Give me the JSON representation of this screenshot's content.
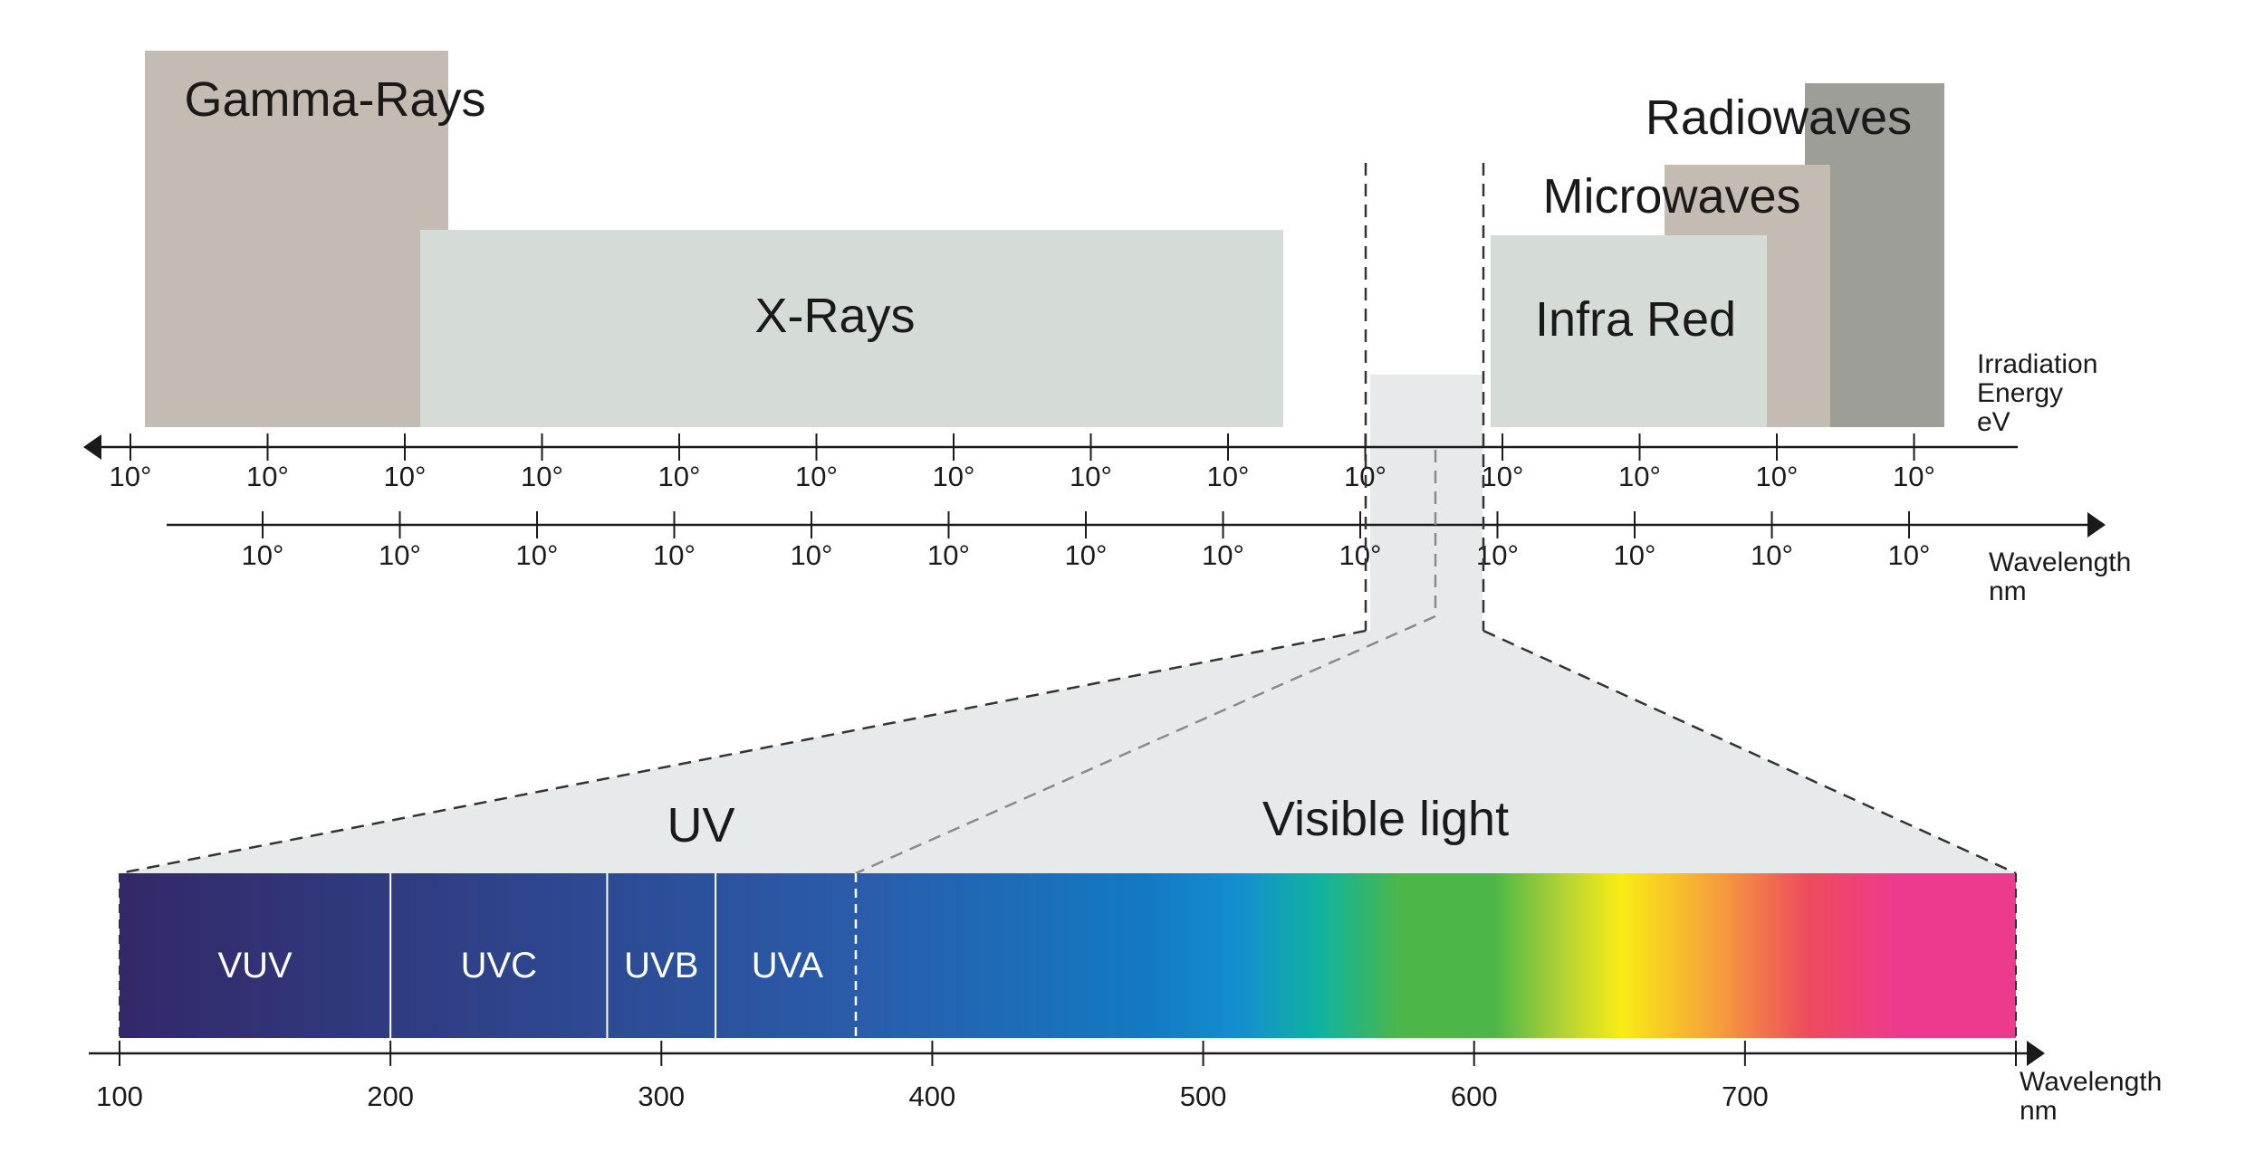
{
  "spectrum": {
    "bands": [
      {
        "id": "gamma",
        "label": "Gamma-Rays",
        "color": "#c4bcb3"
      },
      {
        "id": "xray",
        "label": "X-Rays",
        "color": "#d5dbd7"
      },
      {
        "id": "visible-window",
        "label": "",
        "color": "#e7eaea"
      },
      {
        "id": "infrared",
        "label": "Infra Red",
        "color": "#d5dbd7"
      },
      {
        "id": "microwaves",
        "label": "Microwaves",
        "color": "#c4bcb3"
      },
      {
        "id": "radiowaves",
        "label": "Radiowaves",
        "color": "#9d9e98"
      }
    ],
    "energy_axis": {
      "label_lines": [
        "Irradiation",
        "Energy",
        "eV"
      ],
      "ticks": [
        "10°",
        "10°",
        "10°",
        "10°",
        "10°",
        "10°",
        "10°",
        "10°",
        "10°",
        "10°",
        "10°",
        "10°",
        "10°",
        "10°"
      ]
    },
    "wavelength_axis": {
      "label_lines": [
        "Wavelength",
        "nm"
      ],
      "ticks": [
        "10°",
        "10°",
        "10°",
        "10°",
        "10°",
        "10°",
        "10°",
        "10°",
        "10°",
        "10°",
        "10°",
        "10°",
        "10°"
      ]
    }
  },
  "zoom": {
    "uv_label": "UV",
    "visible_label": "Visible light",
    "segments": [
      {
        "label": "VUV",
        "range_nm": [
          100,
          200
        ]
      },
      {
        "label": "UVC",
        "range_nm": [
          200,
          280
        ]
      },
      {
        "label": "UVB",
        "range_nm": [
          280,
          320
        ]
      },
      {
        "label": "UVA",
        "range_nm": [
          320,
          373
        ]
      }
    ],
    "axis": {
      "label_lines": [
        "Wavelength",
        "nm"
      ],
      "range_nm": [
        100,
        800
      ],
      "ticks": [
        "100",
        "200",
        "300",
        "400",
        "500",
        "600",
        "700"
      ]
    },
    "colors": {
      "fan": "#e7eaea",
      "uv_start": "#332868",
      "uv_end": "#2a5caa",
      "violet": "#2a5caa",
      "blue": "#1379c2",
      "cyan": "#148ed0",
      "teal": "#10b3a0",
      "green": "#4cb649",
      "yellow_green": "#b4d235",
      "yellow": "#f9ec14",
      "orange": "#f6a13a",
      "red": "#ee4b5d",
      "magenta": "#ed3a8f"
    }
  }
}
